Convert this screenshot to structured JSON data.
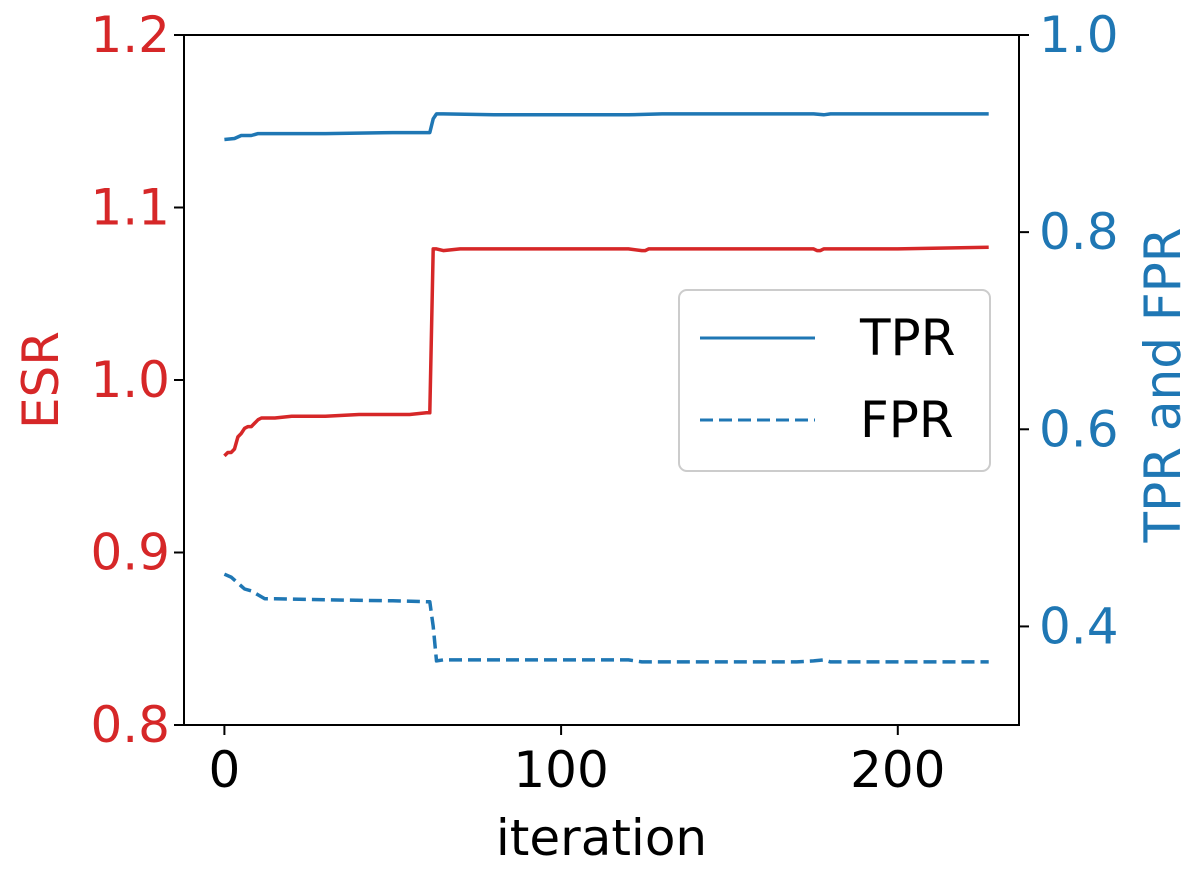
{
  "chart_data": {
    "type": "line",
    "xlabel": "iteration",
    "ylabel": "ESR",
    "ylabel_right": "TPR and FPR",
    "xlim": [
      -12,
      236
    ],
    "ylim": [
      0.8,
      1.2
    ],
    "ylim_right": [
      0.3,
      1.0
    ],
    "xticks": [
      0,
      100,
      200
    ],
    "xtick_labels": [
      "0",
      "100",
      "200"
    ],
    "yticks": [
      0.8,
      0.9,
      1.0,
      1.1,
      1.2
    ],
    "ytick_labels": [
      "0.8",
      "0.9",
      "1.0",
      "1.1",
      "1.2"
    ],
    "yticks_right": [
      0.4,
      0.6,
      0.8,
      1.0
    ],
    "ytick_labels_right": [
      "0.4",
      "0.6",
      "0.8",
      "1.0"
    ],
    "grid": false,
    "legend_position": "center-right",
    "colors": {
      "left_axis": "#d62728",
      "right_axis": "#1f77b4",
      "esr_line": "#d62728",
      "tpr_line": "#1f77b4",
      "fpr_line": "#1f77b4"
    },
    "series": [
      {
        "key": "esr",
        "axis": "left",
        "style": "solid",
        "color": "#d62728",
        "x": [
          0,
          1,
          2,
          3,
          4,
          5,
          6,
          7,
          8,
          9,
          10,
          11,
          12,
          15,
          20,
          30,
          40,
          50,
          55,
          60,
          61,
          62,
          63,
          65,
          70,
          80,
          100,
          120,
          124,
          125,
          126,
          130,
          150,
          170,
          175,
          176,
          177,
          178,
          180,
          200,
          227
        ],
        "y": [
          0.956,
          0.958,
          0.958,
          0.96,
          0.967,
          0.969,
          0.972,
          0.973,
          0.973,
          0.975,
          0.977,
          0.978,
          0.978,
          0.978,
          0.979,
          0.979,
          0.98,
          0.98,
          0.98,
          0.981,
          0.981,
          1.076,
          1.076,
          1.075,
          1.076,
          1.076,
          1.076,
          1.076,
          1.075,
          1.075,
          1.076,
          1.076,
          1.076,
          1.076,
          1.076,
          1.075,
          1.075,
          1.076,
          1.076,
          1.076,
          1.077
        ]
      },
      {
        "key": "tpr",
        "axis": "right",
        "style": "solid",
        "color": "#1f77b4",
        "x": [
          0,
          3,
          5,
          8,
          10,
          15,
          30,
          50,
          61,
          62,
          63,
          65,
          80,
          100,
          120,
          130,
          150,
          175,
          178,
          180,
          200,
          227
        ],
        "y": [
          0.894,
          0.895,
          0.898,
          0.898,
          0.9,
          0.9,
          0.9,
          0.901,
          0.901,
          0.915,
          0.92,
          0.92,
          0.919,
          0.919,
          0.919,
          0.92,
          0.92,
          0.92,
          0.919,
          0.92,
          0.92,
          0.92
        ]
      },
      {
        "key": "fpr",
        "axis": "right",
        "style": "dashed",
        "color": "#1f77b4",
        "x": [
          0,
          2,
          3,
          5,
          6,
          8,
          10,
          12,
          15,
          30,
          50,
          61,
          62,
          63,
          65,
          80,
          100,
          120,
          124,
          125,
          130,
          150,
          170,
          175,
          178,
          180,
          200,
          227
        ],
        "y": [
          0.453,
          0.45,
          0.447,
          0.441,
          0.438,
          0.436,
          0.432,
          0.428,
          0.428,
          0.427,
          0.426,
          0.425,
          0.4,
          0.365,
          0.366,
          0.366,
          0.366,
          0.366,
          0.364,
          0.364,
          0.364,
          0.364,
          0.364,
          0.365,
          0.366,
          0.364,
          0.364,
          0.364
        ]
      }
    ],
    "legend": [
      {
        "label": "TPR",
        "series": "tpr"
      },
      {
        "label": "FPR",
        "series": "fpr"
      }
    ]
  }
}
